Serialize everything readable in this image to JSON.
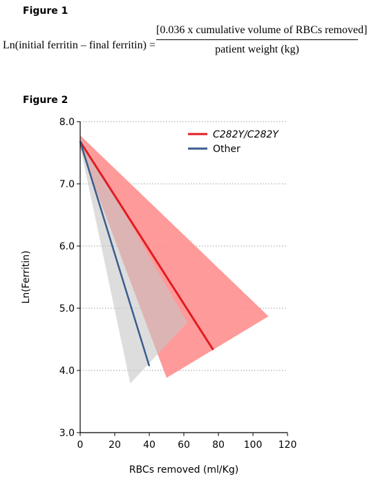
{
  "figure1": {
    "label": "Figure 1",
    "lhs": "Ln(initial ferritin – final ferritin) =",
    "numerator": "[0.036 x cumulative volume of RBCs removed]",
    "denominator": "patient weight (kg)"
  },
  "figure2": {
    "label": "Figure 2"
  },
  "chart_data": {
    "type": "line",
    "xlabel": "RBCs removed (ml/Kg)",
    "ylabel": "Ln(Ferritin)",
    "xlim": [
      0,
      120
    ],
    "ylim": [
      3.0,
      8.0
    ],
    "xticks": [
      "0",
      "20",
      "40",
      "60",
      "80",
      "100",
      "120"
    ],
    "yticks": [
      "3.0",
      "4.0",
      "5.0",
      "6.0",
      "7.0",
      "8.0"
    ],
    "grid": "horizontal dotted",
    "legend_position": "top-right",
    "series": [
      {
        "name": "C282Y/C282Y",
        "color": "#e11b22",
        "band_color": "#ff8f8f",
        "line": [
          [
            0,
            7.68
          ],
          [
            77,
            4.33
          ]
        ],
        "band": [
          [
            0,
            7.78
          ],
          [
            109,
            4.87
          ],
          [
            50,
            3.88
          ],
          [
            0,
            7.58
          ]
        ]
      },
      {
        "name": "Other",
        "color": "#3a5c8c",
        "band_color": "#c7c7c7",
        "line": [
          [
            0,
            7.68
          ],
          [
            40,
            4.07
          ]
        ],
        "band": [
          [
            0,
            7.76
          ],
          [
            62,
            4.77
          ],
          [
            29,
            3.79
          ],
          [
            0,
            7.6
          ]
        ]
      }
    ]
  }
}
